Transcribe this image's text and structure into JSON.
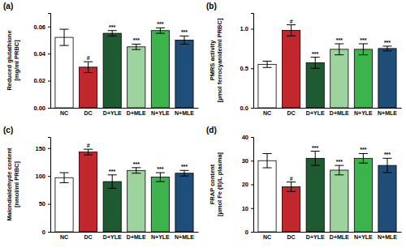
{
  "chart_data": [
    {
      "type": "bar",
      "title": "(a)",
      "y_label": [
        "Reduced glutathione",
        "[mg/ml PRBC]"
      ],
      "categories": [
        "NC",
        "DC",
        "D+YLE",
        "D+MLE",
        "N+YLE",
        "N+MLE"
      ],
      "values": [
        0.052,
        0.03,
        0.055,
        0.045,
        0.057,
        0.05
      ],
      "errors": [
        0.006,
        0.004,
        0.002,
        0.002,
        0.002,
        0.003
      ],
      "significance": [
        null,
        "#",
        "***",
        "***",
        "***",
        "***"
      ],
      "colors": [
        "#ffffff",
        "#c1272d",
        "#1e5a32",
        "#9dd49d",
        "#3cb44b",
        "#1f4e79"
      ],
      "ylim": [
        0,
        0.07
      ],
      "yticks": [
        {
          "value": 0,
          "label": "0.00"
        },
        {
          "value": 0.02,
          "label": "0.02"
        },
        {
          "value": 0.04,
          "label": "0.04"
        },
        {
          "value": 0.06,
          "label": "0.06"
        }
      ]
    },
    {
      "type": "bar",
      "title": "(b)",
      "y_label": [
        "PMRS activity",
        "[µmol ferrocyanide/ml PRBC]"
      ],
      "categories": [
        "NC",
        "DC",
        "D+YLE",
        "D+MLE",
        "N+YLE",
        "N+MLE"
      ],
      "values": [
        0.55,
        0.98,
        0.57,
        0.74,
        0.74,
        0.75
      ],
      "errors": [
        0.04,
        0.07,
        0.07,
        0.07,
        0.07,
        0.03
      ],
      "significance": [
        null,
        "#",
        "***",
        "***",
        "***",
        "***"
      ],
      "colors": [
        "#ffffff",
        "#c1272d",
        "#1e5a32",
        "#9dd49d",
        "#3cb44b",
        "#1f4e79"
      ],
      "ylim": [
        0,
        1.2
      ],
      "yticks": [
        {
          "value": 0,
          "label": "0.0"
        },
        {
          "value": 0.5,
          "label": "0.5"
        },
        {
          "value": 1,
          "label": "1.0"
        }
      ]
    },
    {
      "type": "bar",
      "title": "(c)",
      "y_label": [
        "Malondialdehyde content",
        "[nmol/ml PRBC]"
      ],
      "categories": [
        "NC",
        "DC",
        "D+YLE",
        "D+MLE",
        "N+YLE",
        "N+MLE"
      ],
      "values": [
        97,
        143,
        90,
        110,
        98,
        105
      ],
      "errors": [
        9,
        5,
        12,
        5,
        8,
        5
      ],
      "significance": [
        null,
        "#",
        "***",
        "***",
        "***",
        "***"
      ],
      "colors": [
        "#ffffff",
        "#c1272d",
        "#1e5a32",
        "#9dd49d",
        "#3cb44b",
        "#1f4e79"
      ],
      "ylim": [
        0,
        170
      ],
      "yticks": [
        0,
        50,
        100,
        150
      ]
    },
    {
      "type": "bar",
      "title": "(d)",
      "y_label": [
        "FRAP content",
        "[µmol Fe (II)/L plasma]"
      ],
      "categories": [
        "NC",
        "DC",
        "D+YLE",
        "D+MLE",
        "N+YLE",
        "N+MLE"
      ],
      "values": [
        30,
        19,
        31,
        26,
        31,
        28
      ],
      "errors": [
        3,
        2,
        3,
        2,
        2,
        3
      ],
      "significance": [
        null,
        "#",
        "***",
        "***",
        "***",
        "***"
      ],
      "colors": [
        "#ffffff",
        "#c1272d",
        "#1e5a32",
        "#9dd49d",
        "#3cb44b",
        "#1f4e79"
      ],
      "ylim": [
        0,
        40
      ],
      "yticks": [
        0,
        10,
        20,
        30,
        40
      ]
    }
  ]
}
